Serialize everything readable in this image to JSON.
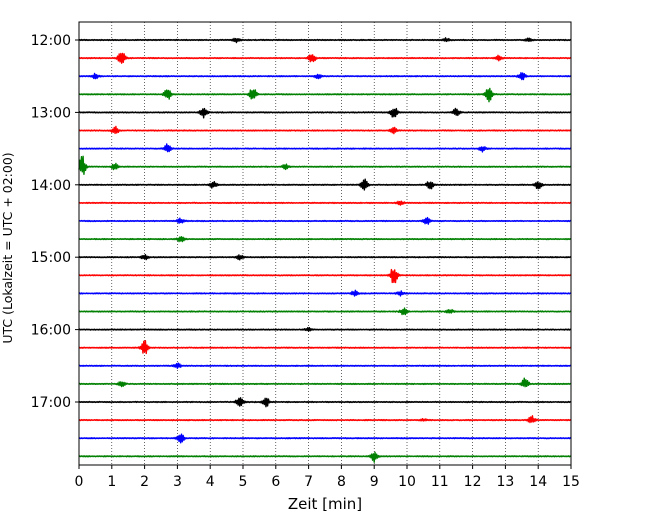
{
  "chart_data": {
    "type": "line",
    "title": "",
    "xlabel": "Zeit  [min]",
    "ylabel": "UTC (Lokalzeit = UTC + 02:00)",
    "xlim": [
      0,
      15
    ],
    "x_ticks": [
      0,
      1,
      2,
      3,
      4,
      5,
      6,
      7,
      8,
      9,
      10,
      11,
      12,
      13,
      14,
      15
    ],
    "x_tick_labels": [
      "0",
      "1",
      "2",
      "3",
      "4",
      "5",
      "6",
      "7",
      "8",
      "9",
      "10",
      "11",
      "12",
      "13",
      "14",
      "15"
    ],
    "y_tick_labels": [
      "12:00",
      "13:00",
      "14:00",
      "15:00",
      "16:00",
      "17:00"
    ],
    "y_tick_rows": [
      0,
      4,
      8,
      12,
      16,
      20
    ],
    "grid": "vertical dotted at each minute",
    "row_interval_minutes": 15,
    "color_cycle": [
      "#000000",
      "#ff0000",
      "#0000ff",
      "#008000"
    ],
    "traces": [
      {
        "start": "12:00",
        "events": [
          [
            4.8,
            0.5
          ],
          [
            11.2,
            0.4
          ],
          [
            13.7,
            0.3
          ]
        ]
      },
      {
        "start": "12:15",
        "events": [
          [
            1.3,
            1.5
          ],
          [
            7.1,
            1.1
          ],
          [
            12.8,
            0.5
          ]
        ]
      },
      {
        "start": "12:30",
        "events": [
          [
            0.5,
            0.5
          ],
          [
            7.3,
            0.5
          ],
          [
            13.5,
            0.8
          ]
        ]
      },
      {
        "start": "12:45",
        "events": [
          [
            2.7,
            1.1
          ],
          [
            5.3,
            1.5
          ],
          [
            12.5,
            1.4
          ]
        ]
      },
      {
        "start": "13:00",
        "events": [
          [
            3.8,
            1.0
          ],
          [
            9.6,
            1.2
          ],
          [
            11.5,
            0.9
          ]
        ]
      },
      {
        "start": "13:15",
        "events": [
          [
            1.1,
            0.8
          ],
          [
            9.6,
            0.6
          ]
        ]
      },
      {
        "start": "13:30",
        "events": [
          [
            2.7,
            0.9
          ],
          [
            12.3,
            0.6
          ]
        ]
      },
      {
        "start": "13:45",
        "events": [
          [
            0.1,
            2.2
          ],
          [
            1.1,
            0.6
          ],
          [
            6.3,
            0.5
          ]
        ]
      },
      {
        "start": "14:00",
        "events": [
          [
            4.1,
            0.7
          ],
          [
            8.7,
            1.1
          ],
          [
            10.7,
            0.9
          ],
          [
            14.0,
            0.8
          ]
        ]
      },
      {
        "start": "14:15",
        "events": [
          [
            9.8,
            0.4
          ]
        ]
      },
      {
        "start": "14:30",
        "events": [
          [
            3.1,
            0.5
          ],
          [
            10.6,
            0.7
          ]
        ]
      },
      {
        "start": "14:45",
        "events": [
          [
            3.1,
            0.6
          ]
        ]
      },
      {
        "start": "15:00",
        "events": [
          [
            2.0,
            0.5
          ],
          [
            4.9,
            0.5
          ]
        ]
      },
      {
        "start": "15:15",
        "events": [
          [
            9.6,
            2.0
          ]
        ]
      },
      {
        "start": "15:30",
        "events": [
          [
            8.4,
            0.6
          ],
          [
            9.8,
            0.5
          ]
        ]
      },
      {
        "start": "15:45",
        "events": [
          [
            9.9,
            0.7
          ],
          [
            11.3,
            0.5
          ]
        ]
      },
      {
        "start": "16:00",
        "events": [
          [
            7.0,
            0.4
          ]
        ]
      },
      {
        "start": "16:15",
        "events": [
          [
            2.0,
            1.4
          ]
        ]
      },
      {
        "start": "16:30",
        "events": [
          [
            3.0,
            0.5
          ]
        ]
      },
      {
        "start": "16:45",
        "events": [
          [
            1.3,
            0.5
          ],
          [
            13.6,
            1.1
          ]
        ]
      },
      {
        "start": "17:00",
        "events": [
          [
            4.9,
            1.1
          ],
          [
            5.7,
            0.9
          ]
        ]
      },
      {
        "start": "17:15",
        "events": [
          [
            13.8,
            0.8
          ],
          [
            10.5,
            0.3
          ]
        ]
      },
      {
        "start": "17:30",
        "events": [
          [
            3.1,
            0.9
          ]
        ]
      },
      {
        "start": "17:45",
        "events": [
          [
            9.0,
            1.1
          ]
        ]
      }
    ]
  }
}
